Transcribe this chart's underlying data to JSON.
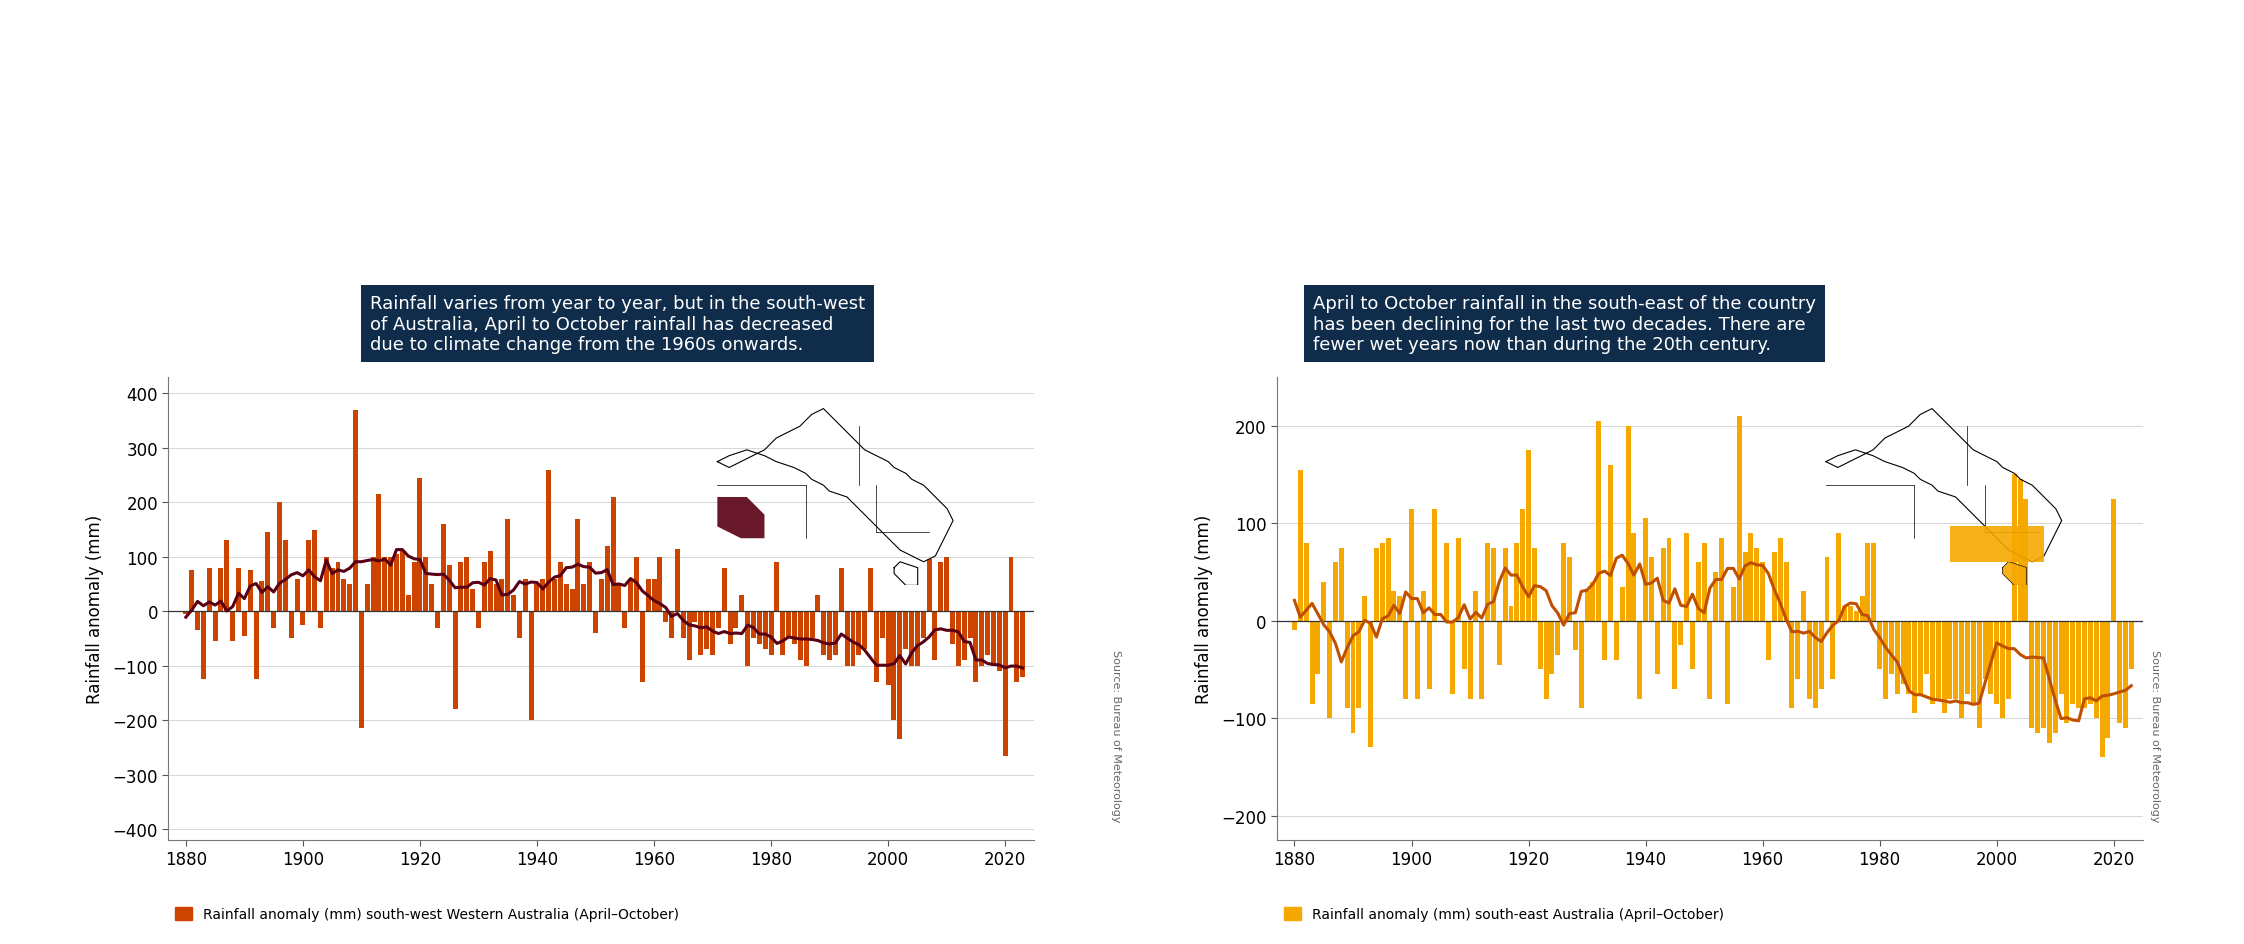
{
  "title_left": "Rainfall varies from year to year, but in the south-west\nof Australia, April to October rainfall has decreased\ndue to climate change from the 1960s onwards.",
  "title_right": "April to October rainfall in the south-east of the country\nhas been declining for the last two decades. There are\nfewer wet years now than during the 20th century.",
  "ylabel": "Rainfall anomaly (mm)",
  "legend_left": "Rainfall anomaly (mm) south-west Western Australia (April–October)",
  "legend_right": "Rainfall anomaly (mm) south-east Australia (April–October)",
  "source_text": "Source: Bureau of Meteorology",
  "title_bg_color": "#0f2d4a",
  "title_text_color": "#ffffff",
  "bar_color_left": "#cc4400",
  "bar_color_right": "#f5a800",
  "line_color_left": "#5a0015",
  "line_color_right": "#c05000",
  "zero_line_color": "#333333",
  "bg_color": "#ffffff",
  "grid_color": "#d0d0d0",
  "ylim_left": [
    -420,
    430
  ],
  "ylim_right": [
    -225,
    250
  ],
  "yticks_left": [
    -400,
    -300,
    -200,
    -100,
    0,
    100,
    200,
    300,
    400
  ],
  "yticks_right": [
    -200,
    -100,
    0,
    100,
    200
  ],
  "xlim": [
    1877,
    2025
  ],
  "xticks": [
    1880,
    1900,
    1920,
    1940,
    1960,
    1980,
    2000,
    2020
  ],
  "years": [
    1880,
    1881,
    1882,
    1883,
    1884,
    1885,
    1886,
    1887,
    1888,
    1889,
    1890,
    1891,
    1892,
    1893,
    1894,
    1895,
    1896,
    1897,
    1898,
    1899,
    1900,
    1901,
    1902,
    1903,
    1904,
    1905,
    1906,
    1907,
    1908,
    1909,
    1910,
    1911,
    1912,
    1913,
    1914,
    1915,
    1916,
    1917,
    1918,
    1919,
    1920,
    1921,
    1922,
    1923,
    1924,
    1925,
    1926,
    1927,
    1928,
    1929,
    1930,
    1931,
    1932,
    1933,
    1934,
    1935,
    1936,
    1937,
    1938,
    1939,
    1940,
    1941,
    1942,
    1943,
    1944,
    1945,
    1946,
    1947,
    1948,
    1949,
    1950,
    1951,
    1952,
    1953,
    1954,
    1955,
    1956,
    1957,
    1958,
    1959,
    1960,
    1961,
    1962,
    1963,
    1964,
    1965,
    1966,
    1967,
    1968,
    1969,
    1970,
    1971,
    1972,
    1973,
    1974,
    1975,
    1976,
    1977,
    1978,
    1979,
    1980,
    1981,
    1982,
    1983,
    1984,
    1985,
    1986,
    1987,
    1988,
    1989,
    1990,
    1991,
    1992,
    1993,
    1994,
    1995,
    1996,
    1997,
    1998,
    1999,
    2000,
    2001,
    2002,
    2003,
    2004,
    2005,
    2006,
    2007,
    2008,
    2009,
    2010,
    2011,
    2012,
    2013,
    2014,
    2015,
    2016,
    2017,
    2018,
    2019,
    2020,
    2021,
    2022,
    2023
  ],
  "sw_values": [
    -5,
    75,
    -35,
    -125,
    80,
    -55,
    80,
    130,
    -55,
    80,
    -45,
    75,
    -125,
    55,
    145,
    -30,
    200,
    130,
    -50,
    60,
    -25,
    130,
    150,
    -30,
    100,
    80,
    90,
    60,
    50,
    370,
    -215,
    50,
    100,
    215,
    100,
    100,
    105,
    110,
    30,
    90,
    245,
    100,
    50,
    -30,
    160,
    85,
    -180,
    90,
    100,
    40,
    -30,
    90,
    110,
    50,
    60,
    170,
    30,
    -50,
    60,
    -200,
    50,
    60,
    260,
    60,
    90,
    50,
    40,
    170,
    50,
    90,
    -40,
    60,
    120,
    210,
    50,
    -30,
    60,
    100,
    -130,
    60,
    60,
    100,
    -20,
    -50,
    115,
    -50,
    -90,
    -20,
    -80,
    -70,
    -80,
    -30,
    80,
    -60,
    -30,
    30,
    -100,
    -50,
    -60,
    -70,
    -80,
    90,
    -80,
    -50,
    -60,
    -90,
    -100,
    -50,
    30,
    -80,
    -90,
    -80,
    80,
    -100,
    -100,
    -80,
    -70,
    80,
    -130,
    -50,
    -135,
    -200,
    -235,
    -70,
    -100,
    -100,
    -50,
    95,
    -90,
    90,
    100,
    -60,
    -100,
    -90,
    -50,
    -130,
    -100,
    -80,
    -100,
    -110,
    -265,
    100,
    -130,
    -120
  ],
  "se_values": [
    -10,
    155,
    80,
    -85,
    -55,
    40,
    -100,
    60,
    75,
    -90,
    -115,
    -90,
    25,
    -130,
    75,
    80,
    85,
    30,
    25,
    -80,
    115,
    -80,
    30,
    -70,
    115,
    0,
    80,
    -75,
    85,
    -50,
    -80,
    30,
    -80,
    80,
    75,
    -45,
    75,
    15,
    80,
    115,
    175,
    75,
    -50,
    -80,
    -55,
    -35,
    80,
    65,
    -30,
    -90,
    30,
    40,
    205,
    -40,
    160,
    -40,
    35,
    200,
    90,
    -80,
    105,
    65,
    -55,
    75,
    85,
    -70,
    -25,
    90,
    -50,
    60,
    80,
    -80,
    50,
    85,
    -85,
    35,
    210,
    70,
    90,
    75,
    60,
    -40,
    70,
    85,
    60,
    -90,
    -60,
    30,
    -80,
    -90,
    -70,
    65,
    -60,
    90,
    15,
    15,
    10,
    25,
    80,
    80,
    -50,
    -80,
    -55,
    -75,
    -65,
    -75,
    -95,
    -75,
    -55,
    -85,
    -80,
    -95,
    -80,
    -80,
    -100,
    -75,
    -85,
    -110,
    -60,
    -75,
    -85,
    -100,
    -80,
    150,
    145,
    125,
    -110,
    -115,
    -110,
    -125,
    -115,
    -75,
    -105,
    -85,
    -90,
    -90,
    -85,
    -100,
    -140,
    -120,
    125,
    -105,
    -110,
    -50
  ],
  "smooth_window": 11
}
